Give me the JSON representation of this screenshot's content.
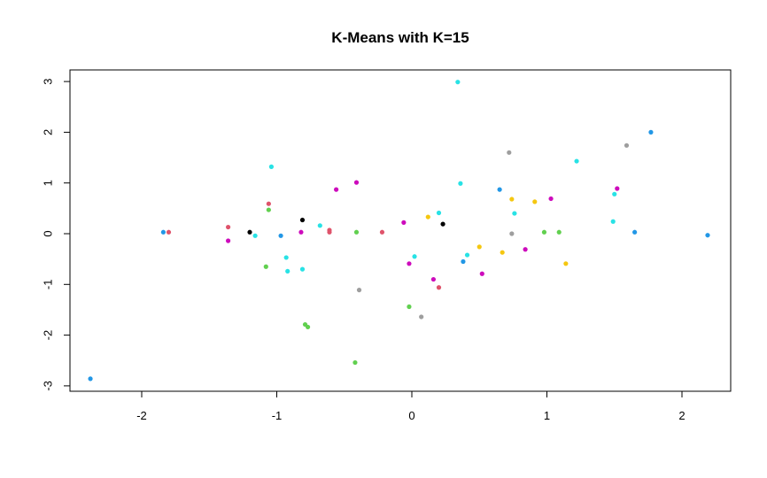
{
  "chart_data": {
    "type": "scatter",
    "title": "K-Means with K=15",
    "xlabel": "",
    "ylabel": "",
    "xlim": [
      -2.55,
      2.35
    ],
    "ylim": [
      -3.1,
      3.25
    ],
    "xticks": [
      -2,
      -1,
      0,
      1,
      2
    ],
    "yticks": [
      -3,
      -2,
      -1,
      0,
      1,
      2,
      3
    ],
    "grid": false,
    "legend": "none",
    "colors": {
      "black": "#000000",
      "red": "#DF536B",
      "green": "#61D04F",
      "blue": "#2297E6",
      "cyan": "#28E2E5",
      "magenta": "#CD0BBC",
      "yellow": "#F5C710",
      "gray": "#9E9E9E"
    },
    "points": [
      {
        "x": -2.38,
        "y": -2.86,
        "c": "blue"
      },
      {
        "x": -1.84,
        "y": 0.03,
        "c": "blue"
      },
      {
        "x": -1.8,
        "y": 0.03,
        "c": "red"
      },
      {
        "x": -1.36,
        "y": 0.13,
        "c": "red"
      },
      {
        "x": -1.36,
        "y": -0.14,
        "c": "magenta"
      },
      {
        "x": -1.2,
        "y": 0.03,
        "c": "black"
      },
      {
        "x": -1.16,
        "y": -0.04,
        "c": "cyan"
      },
      {
        "x": -1.08,
        "y": -0.65,
        "c": "green"
      },
      {
        "x": -1.06,
        "y": 0.59,
        "c": "red"
      },
      {
        "x": -1.06,
        "y": 0.47,
        "c": "green"
      },
      {
        "x": -1.04,
        "y": 1.32,
        "c": "cyan"
      },
      {
        "x": -0.97,
        "y": -0.04,
        "c": "blue"
      },
      {
        "x": -0.93,
        "y": -0.47,
        "c": "cyan"
      },
      {
        "x": -0.92,
        "y": -0.74,
        "c": "cyan"
      },
      {
        "x": -0.81,
        "y": 0.27,
        "c": "black"
      },
      {
        "x": -0.82,
        "y": 0.03,
        "c": "magenta"
      },
      {
        "x": -0.81,
        "y": -0.7,
        "c": "cyan"
      },
      {
        "x": -0.79,
        "y": -1.79,
        "c": "green"
      },
      {
        "x": -0.77,
        "y": -1.84,
        "c": "green"
      },
      {
        "x": -0.68,
        "y": 0.16,
        "c": "cyan"
      },
      {
        "x": -0.61,
        "y": 0.07,
        "c": "red"
      },
      {
        "x": -0.61,
        "y": 0.03,
        "c": "red"
      },
      {
        "x": -0.56,
        "y": 0.87,
        "c": "magenta"
      },
      {
        "x": -0.41,
        "y": 1.01,
        "c": "magenta"
      },
      {
        "x": -0.41,
        "y": 0.03,
        "c": "green"
      },
      {
        "x": -0.42,
        "y": -2.54,
        "c": "green"
      },
      {
        "x": -0.39,
        "y": -1.11,
        "c": "gray"
      },
      {
        "x": -0.22,
        "y": 0.03,
        "c": "red"
      },
      {
        "x": -0.06,
        "y": 0.22,
        "c": "magenta"
      },
      {
        "x": -0.02,
        "y": -0.59,
        "c": "magenta"
      },
      {
        "x": -0.02,
        "y": -1.44,
        "c": "green"
      },
      {
        "x": 0.02,
        "y": -0.45,
        "c": "cyan"
      },
      {
        "x": 0.07,
        "y": -1.64,
        "c": "gray"
      },
      {
        "x": 0.12,
        "y": 0.33,
        "c": "yellow"
      },
      {
        "x": 0.16,
        "y": -0.9,
        "c": "magenta"
      },
      {
        "x": 0.2,
        "y": 0.41,
        "c": "cyan"
      },
      {
        "x": 0.2,
        "y": -1.06,
        "c": "red"
      },
      {
        "x": 0.23,
        "y": 0.19,
        "c": "black"
      },
      {
        "x": 0.34,
        "y": 2.99,
        "c": "cyan"
      },
      {
        "x": 0.36,
        "y": 0.99,
        "c": "cyan"
      },
      {
        "x": 0.38,
        "y": -0.55,
        "c": "blue"
      },
      {
        "x": 0.41,
        "y": -0.42,
        "c": "cyan"
      },
      {
        "x": 0.5,
        "y": -0.26,
        "c": "yellow"
      },
      {
        "x": 0.52,
        "y": -0.79,
        "c": "magenta"
      },
      {
        "x": 0.65,
        "y": 0.87,
        "c": "blue"
      },
      {
        "x": 0.67,
        "y": -0.37,
        "c": "yellow"
      },
      {
        "x": 0.72,
        "y": 1.6,
        "c": "gray"
      },
      {
        "x": 0.74,
        "y": 0.68,
        "c": "yellow"
      },
      {
        "x": 0.74,
        "y": 0.0,
        "c": "gray"
      },
      {
        "x": 0.76,
        "y": 0.4,
        "c": "cyan"
      },
      {
        "x": 0.84,
        "y": -0.31,
        "c": "magenta"
      },
      {
        "x": 0.91,
        "y": 0.63,
        "c": "yellow"
      },
      {
        "x": 0.98,
        "y": 0.03,
        "c": "green"
      },
      {
        "x": 1.03,
        "y": 0.69,
        "c": "magenta"
      },
      {
        "x": 1.09,
        "y": 0.03,
        "c": "green"
      },
      {
        "x": 1.14,
        "y": -0.59,
        "c": "yellow"
      },
      {
        "x": 1.22,
        "y": 1.43,
        "c": "cyan"
      },
      {
        "x": 1.5,
        "y": 0.78,
        "c": "cyan"
      },
      {
        "x": 1.52,
        "y": 0.89,
        "c": "magenta"
      },
      {
        "x": 1.49,
        "y": 0.24,
        "c": "cyan"
      },
      {
        "x": 1.59,
        "y": 1.74,
        "c": "gray"
      },
      {
        "x": 1.65,
        "y": 0.03,
        "c": "blue"
      },
      {
        "x": 1.77,
        "y": 2.0,
        "c": "blue"
      },
      {
        "x": 2.19,
        "y": -0.03,
        "c": "blue"
      }
    ]
  }
}
